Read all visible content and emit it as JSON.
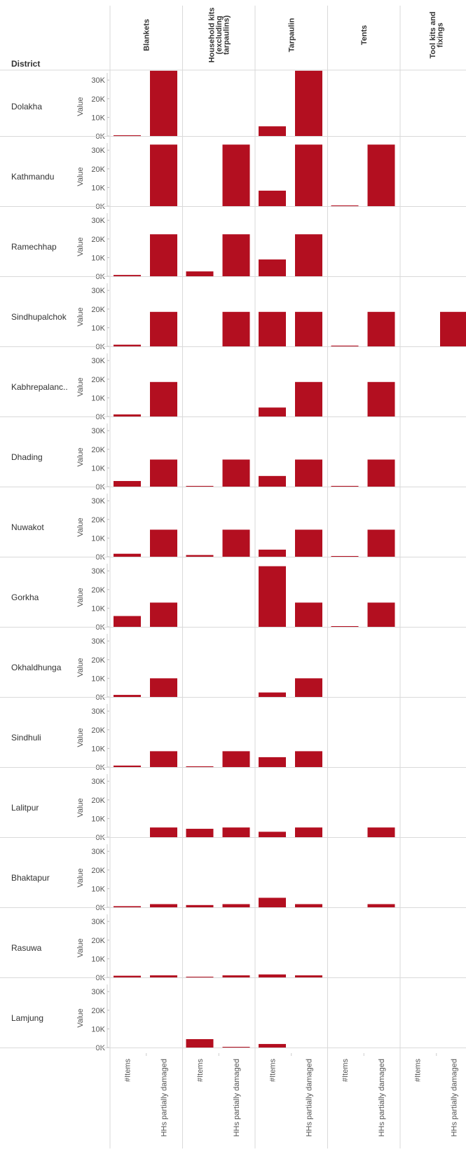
{
  "chart_data": {
    "type": "bar",
    "title": "",
    "row_header": "District",
    "columns": [
      "Blankets",
      "Household kits (excluding tarpaulins)",
      "Tarpaulin",
      "Tents",
      "Tool kits and fixings"
    ],
    "column_header_lines": [
      [
        "Blankets"
      ],
      [
        "Household kits",
        "(excluding",
        "tarpaulins)"
      ],
      [
        "Tarpaulin"
      ],
      [
        "Tents"
      ],
      [
        "Tool kits and",
        "fixings"
      ]
    ],
    "measures": [
      "#Items",
      "HHs partially damaged"
    ],
    "ylabel": "Value",
    "yticks": [
      "0K",
      "10K",
      "20K",
      "30K"
    ],
    "ytick_values": [
      0,
      10000,
      20000,
      30000
    ],
    "ylim": [
      0,
      35000
    ],
    "grid": false,
    "bar_color": "#b30f20",
    "rows": [
      {
        "district": "Dolakha",
        "values": [
          [
            400,
            35000
          ],
          [
            null,
            null
          ],
          [
            5200,
            35000
          ],
          [
            null,
            null
          ],
          [
            null,
            null
          ]
        ]
      },
      {
        "district": "Kathmandu",
        "values": [
          [
            null,
            33000
          ],
          [
            null,
            33000
          ],
          [
            8300,
            33000
          ],
          [
            300,
            33000
          ],
          [
            null,
            null
          ]
        ]
      },
      {
        "district": "Ramechhap",
        "values": [
          [
            700,
            22500
          ],
          [
            2600,
            22500
          ],
          [
            9000,
            22500
          ],
          [
            null,
            null
          ],
          [
            null,
            null
          ]
        ]
      },
      {
        "district": "Sindhupalchok",
        "values": [
          [
            900,
            18500
          ],
          [
            null,
            18500
          ],
          [
            18500,
            18500
          ],
          [
            400,
            18500
          ],
          [
            null,
            18500
          ]
        ]
      },
      {
        "district": "Kabhrepalanc..",
        "values": [
          [
            1100,
            18500
          ],
          [
            null,
            null
          ],
          [
            4800,
            18500
          ],
          [
            null,
            18500
          ],
          [
            null,
            null
          ]
        ]
      },
      {
        "district": "Dhading",
        "values": [
          [
            3000,
            14500
          ],
          [
            200,
            14500
          ],
          [
            5700,
            14500
          ],
          [
            200,
            14500
          ],
          [
            null,
            null
          ]
        ]
      },
      {
        "district": "Nuwakot",
        "values": [
          [
            1600,
            14500
          ],
          [
            900,
            14500
          ],
          [
            3800,
            14500
          ],
          [
            200,
            14500
          ],
          [
            null,
            null
          ]
        ]
      },
      {
        "district": "Gorkha",
        "values": [
          [
            5800,
            13000
          ],
          [
            null,
            null
          ],
          [
            32500,
            13000
          ],
          [
            200,
            13000
          ],
          [
            null,
            null
          ]
        ]
      },
      {
        "district": "Okhaldhunga",
        "values": [
          [
            1100,
            10000
          ],
          [
            null,
            null
          ],
          [
            2400,
            10000
          ],
          [
            null,
            null
          ],
          [
            null,
            null
          ]
        ]
      },
      {
        "district": "Sindhuli",
        "values": [
          [
            800,
            8500
          ],
          [
            400,
            8500
          ],
          [
            5300,
            8500
          ],
          [
            null,
            null
          ],
          [
            null,
            null
          ]
        ]
      },
      {
        "district": "Lalitpur",
        "values": [
          [
            null,
            5200
          ],
          [
            4500,
            5200
          ],
          [
            2900,
            5200
          ],
          [
            null,
            5200
          ],
          [
            null,
            null
          ]
        ]
      },
      {
        "district": "Bhaktapur",
        "values": [
          [
            600,
            1700
          ],
          [
            1200,
            1700
          ],
          [
            5100,
            1700
          ],
          [
            null,
            1700
          ],
          [
            null,
            null
          ]
        ]
      },
      {
        "district": "Rasuwa",
        "values": [
          [
            900,
            1100
          ],
          [
            100,
            1100
          ],
          [
            1600,
            1100
          ],
          [
            null,
            null
          ],
          [
            null,
            null
          ]
        ]
      },
      {
        "district": "Lamjung",
        "values": [
          [
            null,
            null
          ],
          [
            4500,
            100
          ],
          [
            1900,
            null
          ],
          [
            null,
            null
          ],
          [
            null,
            null
          ]
        ]
      }
    ]
  }
}
